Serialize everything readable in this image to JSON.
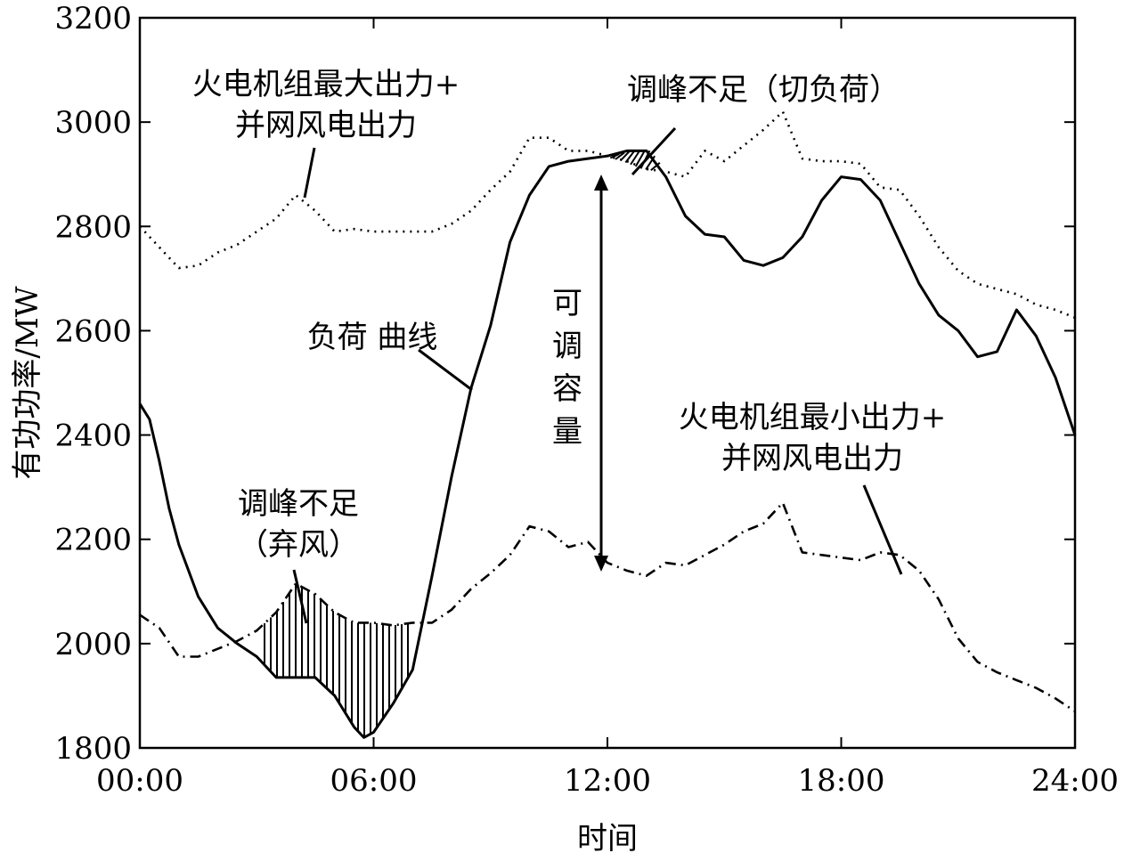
{
  "chart_data": {
    "type": "line",
    "xlabel": "时间",
    "ylabel": "有功功率/MW",
    "xlim": [
      0,
      24
    ],
    "ylim": [
      1800,
      3200
    ],
    "x_tick_values": [
      0,
      6,
      12,
      18,
      24
    ],
    "x_tick_labels": [
      "00:00",
      "06:00",
      "12:00",
      "18:00",
      "24:00"
    ],
    "y_tick_values": [
      1800,
      2000,
      2200,
      2400,
      2600,
      2800,
      3000,
      3200
    ],
    "y_tick_labels": [
      "1800",
      "2000",
      "2200",
      "2400",
      "2600",
      "2800",
      "3000",
      "3200"
    ],
    "grid": false,
    "legend": "none",
    "series": [
      {
        "name": "火电机组最大出力+并网风电出力",
        "style": "dotted",
        "x": [
          0,
          0.5,
          1,
          1.5,
          2,
          2.5,
          3,
          3.5,
          4,
          4.5,
          5,
          5.5,
          6,
          6.5,
          7,
          7.5,
          8,
          8.5,
          9,
          9.5,
          10,
          10.5,
          11,
          11.5,
          12,
          12.5,
          13,
          13.5,
          14,
          14.5,
          15,
          15.5,
          16,
          16.5,
          17,
          17.5,
          18,
          18.5,
          19,
          19.5,
          20,
          20.5,
          21,
          21.5,
          22,
          22.5,
          23,
          23.5,
          24
        ],
        "y": [
          2800,
          2760,
          2720,
          2725,
          2750,
          2765,
          2790,
          2815,
          2860,
          2830,
          2790,
          2795,
          2790,
          2790,
          2790,
          2790,
          2805,
          2830,
          2870,
          2905,
          2970,
          2970,
          2945,
          2945,
          2935,
          2925,
          2910,
          2905,
          2895,
          2945,
          2925,
          2955,
          2985,
          3020,
          2930,
          2925,
          2925,
          2920,
          2875,
          2870,
          2820,
          2760,
          2715,
          2690,
          2680,
          2670,
          2650,
          2640,
          2625
        ]
      },
      {
        "name": "负荷曲线",
        "style": "solid",
        "x": [
          0,
          0.25,
          0.5,
          0.75,
          1,
          1.5,
          2,
          2.5,
          3,
          3.5,
          4,
          4.5,
          5,
          5.5,
          5.75,
          6,
          6.5,
          7,
          7.5,
          8,
          8.5,
          9,
          9.5,
          10,
          10.5,
          11,
          11.5,
          12,
          12.5,
          13,
          13.5,
          14,
          14.5,
          15,
          15.5,
          16,
          16.5,
          17,
          17.5,
          18,
          18.5,
          19,
          19.5,
          20,
          20.5,
          21,
          21.5,
          22,
          22.5,
          23,
          23.5,
          24
        ],
        "y": [
          2460,
          2430,
          2350,
          2260,
          2190,
          2090,
          2030,
          2000,
          1975,
          1935,
          1935,
          1935,
          1900,
          1840,
          1820,
          1830,
          1885,
          1950,
          2130,
          2320,
          2490,
          2610,
          2770,
          2860,
          2915,
          2925,
          2930,
          2935,
          2945,
          2945,
          2895,
          2820,
          2785,
          2780,
          2735,
          2725,
          2740,
          2780,
          2850,
          2895,
          2890,
          2850,
          2770,
          2690,
          2630,
          2600,
          2550,
          2560,
          2640,
          2590,
          2510,
          2400
        ]
      },
      {
        "name": "火电机组最小出力+并网风电出力",
        "style": "dash-dot",
        "x": [
          0,
          0.5,
          1,
          1.5,
          2,
          2.5,
          3,
          3.5,
          4,
          4.5,
          5,
          5.5,
          6,
          6.5,
          7,
          7.5,
          8,
          8.5,
          9,
          9.5,
          10,
          10.5,
          11,
          11.5,
          12,
          12.5,
          13,
          13.5,
          14,
          14.5,
          15,
          15.5,
          16,
          16.5,
          17,
          17.5,
          18,
          18.5,
          19,
          19.5,
          20,
          20.5,
          21,
          21.5,
          22,
          22.5,
          23,
          23.5,
          24
        ],
        "y": [
          2055,
          2030,
          1975,
          1975,
          1990,
          2005,
          2025,
          2060,
          2115,
          2095,
          2060,
          2040,
          2040,
          2035,
          2040,
          2040,
          2065,
          2105,
          2135,
          2170,
          2225,
          2215,
          2185,
          2195,
          2155,
          2140,
          2130,
          2155,
          2150,
          2170,
          2190,
          2215,
          2230,
          2270,
          2175,
          2170,
          2165,
          2160,
          2175,
          2170,
          2140,
          2085,
          2010,
          1965,
          1945,
          1930,
          1915,
          1895,
          1870
        ]
      }
    ],
    "annotations": {
      "max_label_line1": "火电机组最大出力+",
      "max_label_line2": "并网风电出力",
      "shortage_cut_load": "调峰不足（切负荷）",
      "load_curve": "负荷 曲线",
      "adjustable_capacity": [
        "可",
        "调",
        "容",
        "量"
      ],
      "min_label_line1": "火电机组最小出力+",
      "min_label_line2": "并网风电出力",
      "shortage_wind_line1": "调峰不足",
      "shortage_wind_line2": "（弃风）"
    }
  }
}
